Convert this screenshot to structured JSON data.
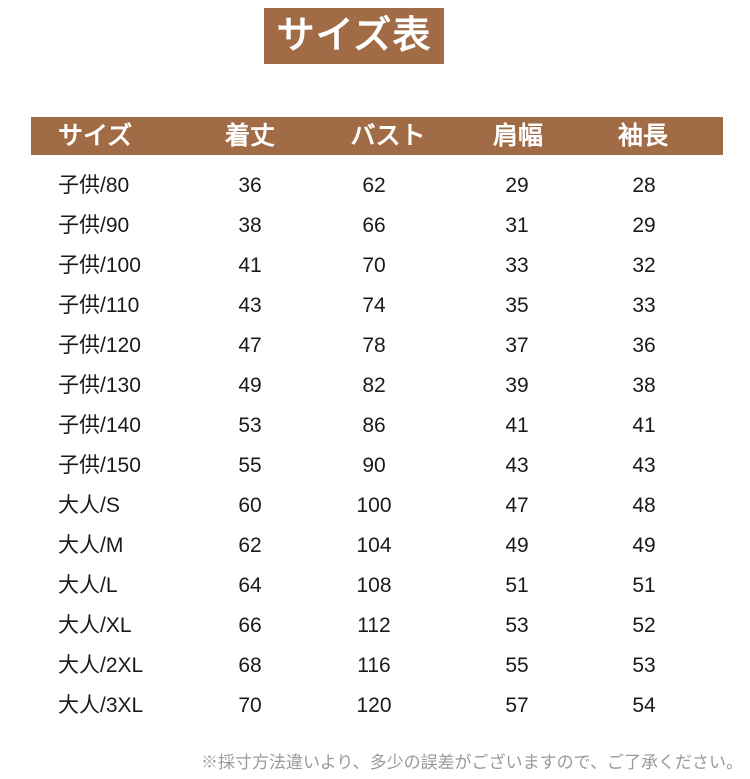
{
  "title": "サイズ表",
  "colors": {
    "accent_brown": "#a06b45",
    "body_text": "#1a1a1a",
    "note_text": "#9a9a9a"
  },
  "table": {
    "headers": [
      "サイズ",
      "着丈",
      "バスト",
      "肩幅",
      "袖長"
    ],
    "rows": [
      {
        "size": "子供/80",
        "length": "36",
        "bust": "62",
        "shoulder": "29",
        "sleeve": "28"
      },
      {
        "size": "子供/90",
        "length": "38",
        "bust": "66",
        "shoulder": "31",
        "sleeve": "29"
      },
      {
        "size": "子供/100",
        "length": "41",
        "bust": "70",
        "shoulder": "33",
        "sleeve": "32"
      },
      {
        "size": "子供/110",
        "length": "43",
        "bust": "74",
        "shoulder": "35",
        "sleeve": "33"
      },
      {
        "size": "子供/120",
        "length": "47",
        "bust": "78",
        "shoulder": "37",
        "sleeve": "36"
      },
      {
        "size": "子供/130",
        "length": "49",
        "bust": "82",
        "shoulder": "39",
        "sleeve": "38"
      },
      {
        "size": "子供/140",
        "length": "53",
        "bust": "86",
        "shoulder": "41",
        "sleeve": "41"
      },
      {
        "size": "子供/150",
        "length": "55",
        "bust": "90",
        "shoulder": "43",
        "sleeve": "43"
      },
      {
        "size": "大人/S",
        "length": "60",
        "bust": "100",
        "shoulder": "47",
        "sleeve": "48"
      },
      {
        "size": "大人/M",
        "length": "62",
        "bust": "104",
        "shoulder": "49",
        "sleeve": "49"
      },
      {
        "size": "大人/L",
        "length": "64",
        "bust": "108",
        "shoulder": "51",
        "sleeve": "51"
      },
      {
        "size": "大人/XL",
        "length": "66",
        "bust": "112",
        "shoulder": "53",
        "sleeve": "52"
      },
      {
        "size": "大人/2XL",
        "length": "68",
        "bust": "116",
        "shoulder": "55",
        "sleeve": "53"
      },
      {
        "size": "大人/3XL",
        "length": "70",
        "bust": "120",
        "shoulder": "57",
        "sleeve": "54"
      }
    ]
  },
  "footnote": "※採寸方法違いより、多少の誤差がございますので、ご了承ください。"
}
